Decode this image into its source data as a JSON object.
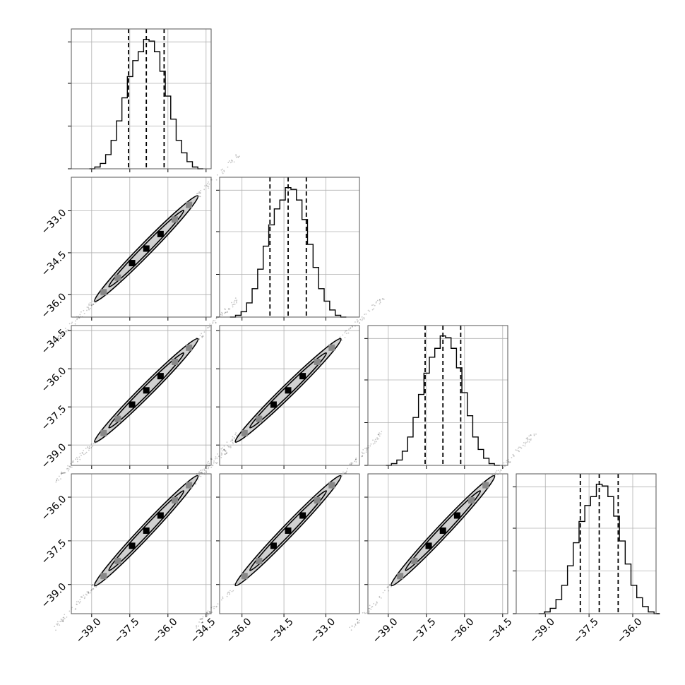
{
  "chart_data": {
    "type": "corner",
    "title": "",
    "grid": true,
    "n_params": 4,
    "params": [
      {
        "ticks": [
          -39.0,
          -37.5,
          -36.0,
          -34.5
        ],
        "tick_labels": [
          "−39.0",
          "−37.5",
          "−36.0",
          "−34.5"
        ],
        "range": [
          -39.8,
          -34.3
        ],
        "quantiles": [
          -37.55,
          -36.85,
          -36.15
        ]
      },
      {
        "ticks": [
          -36.0,
          -34.5,
          -33.0
        ],
        "tick_labels": [
          "−36.0",
          "−34.5",
          "−33.0"
        ],
        "range": [
          -36.8,
          -31.8
        ],
        "quantiles": [
          -35.0,
          -34.35,
          -33.7
        ]
      },
      {
        "ticks": [
          -39.0,
          -37.5,
          -36.0,
          -34.5
        ],
        "tick_labels": [
          "−39.0",
          "−37.5",
          "−36.0",
          "−34.5"
        ],
        "range": [
          -39.8,
          -34.3
        ],
        "quantiles": [
          -37.55,
          -36.85,
          -36.15
        ]
      },
      {
        "ticks": [
          -39.0,
          -37.5,
          -36.0
        ],
        "tick_labels": [
          "−39.0",
          "−37.5",
          "−36.0"
        ],
        "range": [
          -40.0,
          -35.2
        ],
        "quantiles": [
          -37.8,
          -37.15,
          -36.5
        ]
      }
    ],
    "histogram": {
      "mean_offset_frac": 0.5,
      "counts": [
        0,
        1,
        3,
        8,
        16,
        27,
        40,
        52,
        61,
        66,
        73,
        72,
        66,
        55,
        41,
        28,
        16,
        9,
        4,
        1,
        0
      ]
    },
    "colors": {
      "frame": "#555555",
      "grid": "#b0b0b0",
      "line": "#000000",
      "density_dark": "#000000",
      "density_mid": "#888888",
      "density_light": "#d0d0d0"
    }
  }
}
